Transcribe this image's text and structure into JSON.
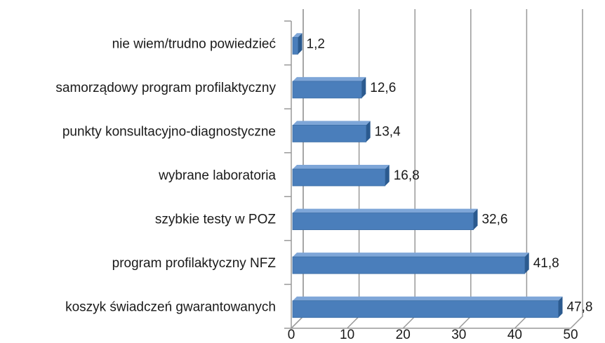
{
  "chart_data": {
    "type": "bar",
    "orientation": "horizontal",
    "categories": [
      "nie wiem/trudno powiedzieć",
      "samorządowy program profilaktyczny",
      "punkty konsultacyjno-diagnostyczne",
      "wybrane laboratoria",
      "szybkie testy w POZ",
      "program profilaktyczny NFZ",
      "koszyk świadczeń gwarantowanych"
    ],
    "values": [
      1.2,
      12.6,
      13.4,
      16.8,
      32.6,
      41.8,
      47.8
    ],
    "value_labels": [
      "1,2",
      "12,6",
      "13,4",
      "16,8",
      "32,6",
      "41,8",
      "47,8"
    ],
    "color": "#4a7ebb",
    "xlim": [
      0,
      50
    ],
    "xticks": [
      0,
      10,
      20,
      30,
      40,
      50
    ],
    "grid": true
  }
}
